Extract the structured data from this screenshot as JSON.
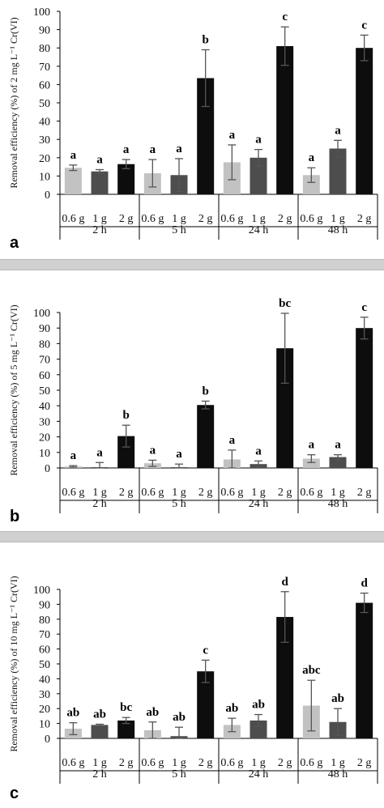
{
  "chart_data": [
    {
      "type": "bar",
      "panel_label": "a",
      "ylabel": "Removal efficiency (%) of 2 mg L⁻¹ Cr(VI)",
      "ylim": [
        0,
        100
      ],
      "yticks": [
        "0",
        "10",
        "20",
        "30",
        "40",
        "50",
        "60",
        "70",
        "80",
        "90",
        "100"
      ],
      "groups": [
        "2 h",
        "5 h",
        "24 h",
        "48 h"
      ],
      "subcategories": [
        "0.6 g",
        "1 g",
        "2 g"
      ],
      "colors": [
        "#c2c2c2",
        "#4d4d4d",
        "#0d0d0d"
      ],
      "values": [
        [
          14.5,
          12.5,
          16.5
        ],
        [
          11.5,
          10.5,
          63.5
        ],
        [
          17.5,
          20,
          81
        ],
        [
          10.5,
          25,
          80
        ]
      ],
      "errors": [
        [
          1.5,
          1,
          2.5
        ],
        [
          7.5,
          9,
          15.5
        ],
        [
          9.5,
          4.5,
          10.5
        ],
        [
          4,
          4.5,
          7
        ]
      ],
      "letters": [
        [
          "a",
          "a",
          "a"
        ],
        [
          "a",
          "a",
          "b"
        ],
        [
          "a",
          "a",
          "c"
        ],
        [
          "a",
          "a",
          "c"
        ]
      ]
    },
    {
      "type": "bar",
      "panel_label": "b",
      "ylabel": "Removal efficiency (%) of 5 mg L⁻¹ Cr(VI)",
      "ylim": [
        0,
        100
      ],
      "yticks": [
        "0",
        "10",
        "20",
        "30",
        "40",
        "50",
        "60",
        "70",
        "80",
        "90",
        "100"
      ],
      "groups": [
        "2 h",
        "5 h",
        "24 h",
        "48 h"
      ],
      "subcategories": [
        "0.6 g",
        "1 g",
        "2 g"
      ],
      "colors": [
        "#c2c2c2",
        "#4d4d4d",
        "#0d0d0d"
      ],
      "values": [
        [
          1,
          0.5,
          20.5
        ],
        [
          3,
          0.5,
          40.5
        ],
        [
          5.5,
          2.5,
          77
        ],
        [
          6,
          7,
          90
        ]
      ],
      "errors": [
        [
          0.5,
          3,
          7
        ],
        [
          2,
          2,
          2.5
        ],
        [
          6,
          2,
          22.5
        ],
        [
          2.5,
          1.5,
          7
        ]
      ],
      "letters": [
        [
          "a",
          "a",
          "b"
        ],
        [
          "a",
          "a",
          "b"
        ],
        [
          "a",
          "a",
          "bc"
        ],
        [
          "a",
          "a",
          "c"
        ]
      ]
    },
    {
      "type": "bar",
      "panel_label": "c",
      "ylabel": "Removal efficiency (%) of 10 mg L⁻¹ Cr(VI)",
      "ylim": [
        0,
        100
      ],
      "yticks": [
        "0",
        "10",
        "20",
        "30",
        "40",
        "50",
        "60",
        "70",
        "80",
        "90",
        "100"
      ],
      "groups": [
        "2 h",
        "5 h",
        "24 h",
        "48 h"
      ],
      "subcategories": [
        "0.6 g",
        "1 g",
        "2 g"
      ],
      "colors": [
        "#c2c2c2",
        "#4d4d4d",
        "#0d0d0d"
      ],
      "values": [
        [
          6.5,
          9,
          12
        ],
        [
          5.5,
          1.5,
          45
        ],
        [
          9,
          12,
          81.5
        ],
        [
          22,
          11,
          91
        ]
      ],
      "errors": [
        [
          4,
          0.5,
          2
        ],
        [
          5.5,
          6,
          7.5
        ],
        [
          4.5,
          4,
          17
        ],
        [
          17,
          9,
          6.5
        ]
      ],
      "letters": [
        [
          "ab",
          "ab",
          "bc"
        ],
        [
          "ab",
          "ab",
          "c"
        ],
        [
          "ab",
          "ab",
          "d"
        ],
        [
          "abc",
          "ab",
          "d"
        ]
      ]
    }
  ]
}
